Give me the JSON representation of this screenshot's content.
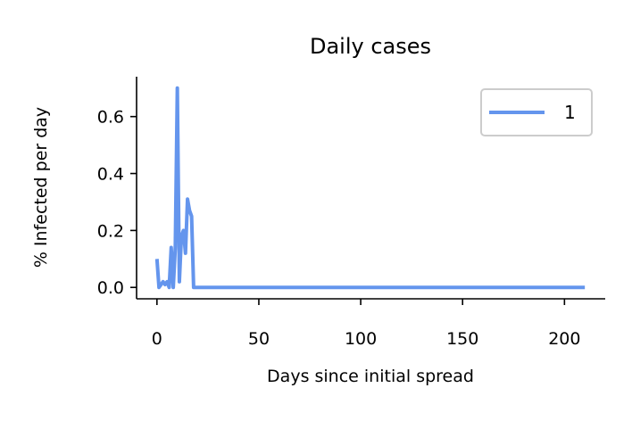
{
  "chart_data": {
    "type": "line",
    "title": "Daily cases",
    "xlabel": "Days since initial spread",
    "ylabel": "% Infected per day",
    "xlim": [
      -10,
      220
    ],
    "ylim": [
      -0.04,
      0.74
    ],
    "xticks": [
      0,
      50,
      100,
      150,
      200
    ],
    "xtick_labels": [
      "0",
      "50",
      "100",
      "150",
      "200"
    ],
    "yticks": [
      0.0,
      0.2,
      0.4,
      0.6
    ],
    "ytick_labels": [
      "0.0",
      "0.2",
      "0.4",
      "0.6"
    ],
    "grid": false,
    "legend_position": "top-right",
    "series": [
      {
        "name": "1",
        "color": "#6495ed",
        "x": [
          0,
          1,
          2,
          3,
          4,
          5,
          6,
          7,
          8,
          9,
          10,
          11,
          12,
          13,
          14,
          15,
          16,
          17,
          18,
          19,
          20,
          21,
          210
        ],
        "y": [
          0.1,
          0.0,
          0.01,
          0.02,
          0.01,
          0.02,
          0.0,
          0.14,
          0.0,
          0.14,
          0.7,
          0.02,
          0.18,
          0.2,
          0.12,
          0.31,
          0.27,
          0.25,
          0.0,
          0.0,
          0.0,
          0.0,
          0.0
        ]
      }
    ]
  }
}
